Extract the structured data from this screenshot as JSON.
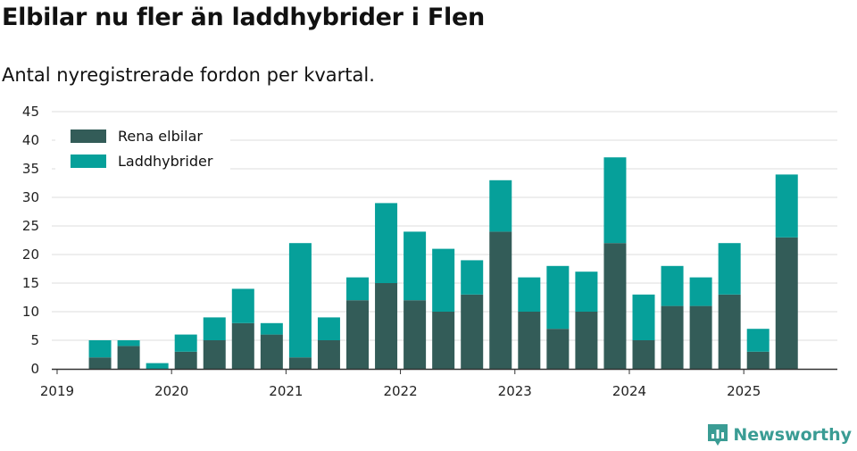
{
  "title": "Elbilar nu fler än laddhybrider i Flen",
  "subtitle": "Antal nyregistrerade fordon per kvartal.",
  "brand": {
    "name": "Newsworthy",
    "color": "#3a9c94"
  },
  "chart_data": {
    "type": "bar",
    "stacked": true,
    "categories": [
      "2019 Q1",
      "2019 Q2",
      "2019 Q3",
      "2019 Q4",
      "2020 Q1",
      "2020 Q2",
      "2020 Q3",
      "2020 Q4",
      "2021 Q1",
      "2021 Q2",
      "2021 Q3",
      "2021 Q4",
      "2022 Q1",
      "2022 Q2",
      "2022 Q3",
      "2022 Q4",
      "2023 Q1",
      "2023 Q2",
      "2023 Q3",
      "2023 Q4",
      "2024 Q1",
      "2024 Q2",
      "2024 Q3",
      "2024 Q4",
      "2025 Q1",
      "2025 Q2"
    ],
    "series": [
      {
        "name": "Rena elbilar",
        "color": "#335c58",
        "values": [
          0,
          2,
          4,
          0,
          3,
          5,
          8,
          6,
          2,
          5,
          12,
          15,
          12,
          10,
          13,
          24,
          10,
          7,
          10,
          22,
          5,
          11,
          11,
          13,
          3,
          23
        ]
      },
      {
        "name": "Laddhybrider",
        "color": "#06a09a",
        "values": [
          0,
          3,
          1,
          1,
          3,
          4,
          6,
          2,
          20,
          4,
          4,
          14,
          12,
          11,
          6,
          9,
          6,
          11,
          7,
          15,
          8,
          7,
          5,
          9,
          4,
          11
        ]
      }
    ],
    "x_tick_labels": [
      "2019",
      "2020",
      "2021",
      "2022",
      "2023",
      "2024",
      "2025"
    ],
    "ylim": [
      0,
      45
    ],
    "y_ticks": [
      0,
      5,
      10,
      15,
      20,
      25,
      30,
      35,
      40,
      45
    ],
    "grid": "horizontal",
    "legend": "top-left"
  }
}
